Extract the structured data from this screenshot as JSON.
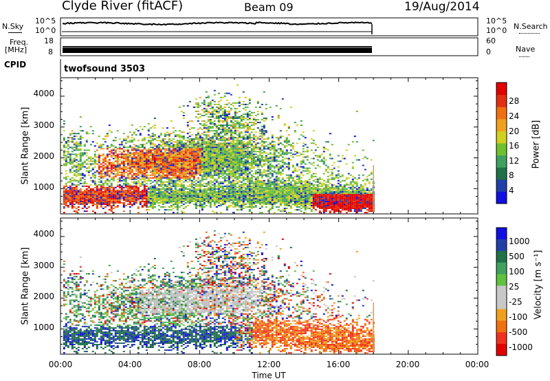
{
  "header": {
    "station": "Clyde River (fitACF)",
    "beam": "Beam 09",
    "date": "19/Aug/2014"
  },
  "panels": {
    "nsky": {
      "label": "N.Sky",
      "left_ticks": [
        "10^5",
        "10^0"
      ],
      "right_ticks": [
        "10^5",
        "10^0"
      ],
      "right_label": "N.Search"
    },
    "freq": {
      "label_line1": "Freq.",
      "label_line2": "[MHz]",
      "left_ticks": [
        "18",
        "8"
      ],
      "right_ticks": [
        "60",
        "0"
      ],
      "right_label": "Nave"
    },
    "cpid": {
      "label": "CPID",
      "program": "twofsound 3503"
    }
  },
  "colors": {
    "power": [
      "#1010e0",
      "#2040a8",
      "#207048",
      "#40a060",
      "#70c030",
      "#d0d020",
      "#f0a020",
      "#f07010",
      "#e03010",
      "#e00000"
    ],
    "velocity": [
      "#e00000",
      "#f03020",
      "#f07010",
      "#f0a020",
      "#c8c8c8",
      "#c8c8c8",
      "#60c040",
      "#40a060",
      "#207048",
      "#2040a8",
      "#1010e0"
    ],
    "ground_scatter": "#c0c0c0"
  },
  "chart_data": [
    {
      "type": "heatmap",
      "name": "power",
      "xlabel": "",
      "ylabel": "Slant Range [km]",
      "xlim": [
        0,
        24
      ],
      "ylim": [
        180,
        4600
      ],
      "y_ticks": [
        1000,
        2000,
        3000,
        4000
      ],
      "colorbar": {
        "label": "Power [dB]",
        "range": [
          0,
          32
        ],
        "ticks": [
          "4",
          "8",
          "12",
          "16",
          "20",
          "24",
          "28"
        ]
      },
      "data_end_hour": 18.0
    },
    {
      "type": "heatmap",
      "name": "velocity",
      "xlabel": "Time UT",
      "ylabel": "Slant Range [km]",
      "xlim": [
        0,
        24
      ],
      "ylim": [
        180,
        4600
      ],
      "x_ticks": [
        "00:00",
        "04:00",
        "08:00",
        "12:00",
        "16:00",
        "20:00",
        "00:00"
      ],
      "y_ticks": [
        1000,
        2000,
        3000,
        4000
      ],
      "colorbar": {
        "label": "Velocity [m s⁻¹]",
        "ticks": [
          "1000",
          "500",
          "100",
          "25",
          "-25",
          "-100",
          "-500",
          "-1000"
        ]
      },
      "data_end_hour": 18.0
    }
  ]
}
